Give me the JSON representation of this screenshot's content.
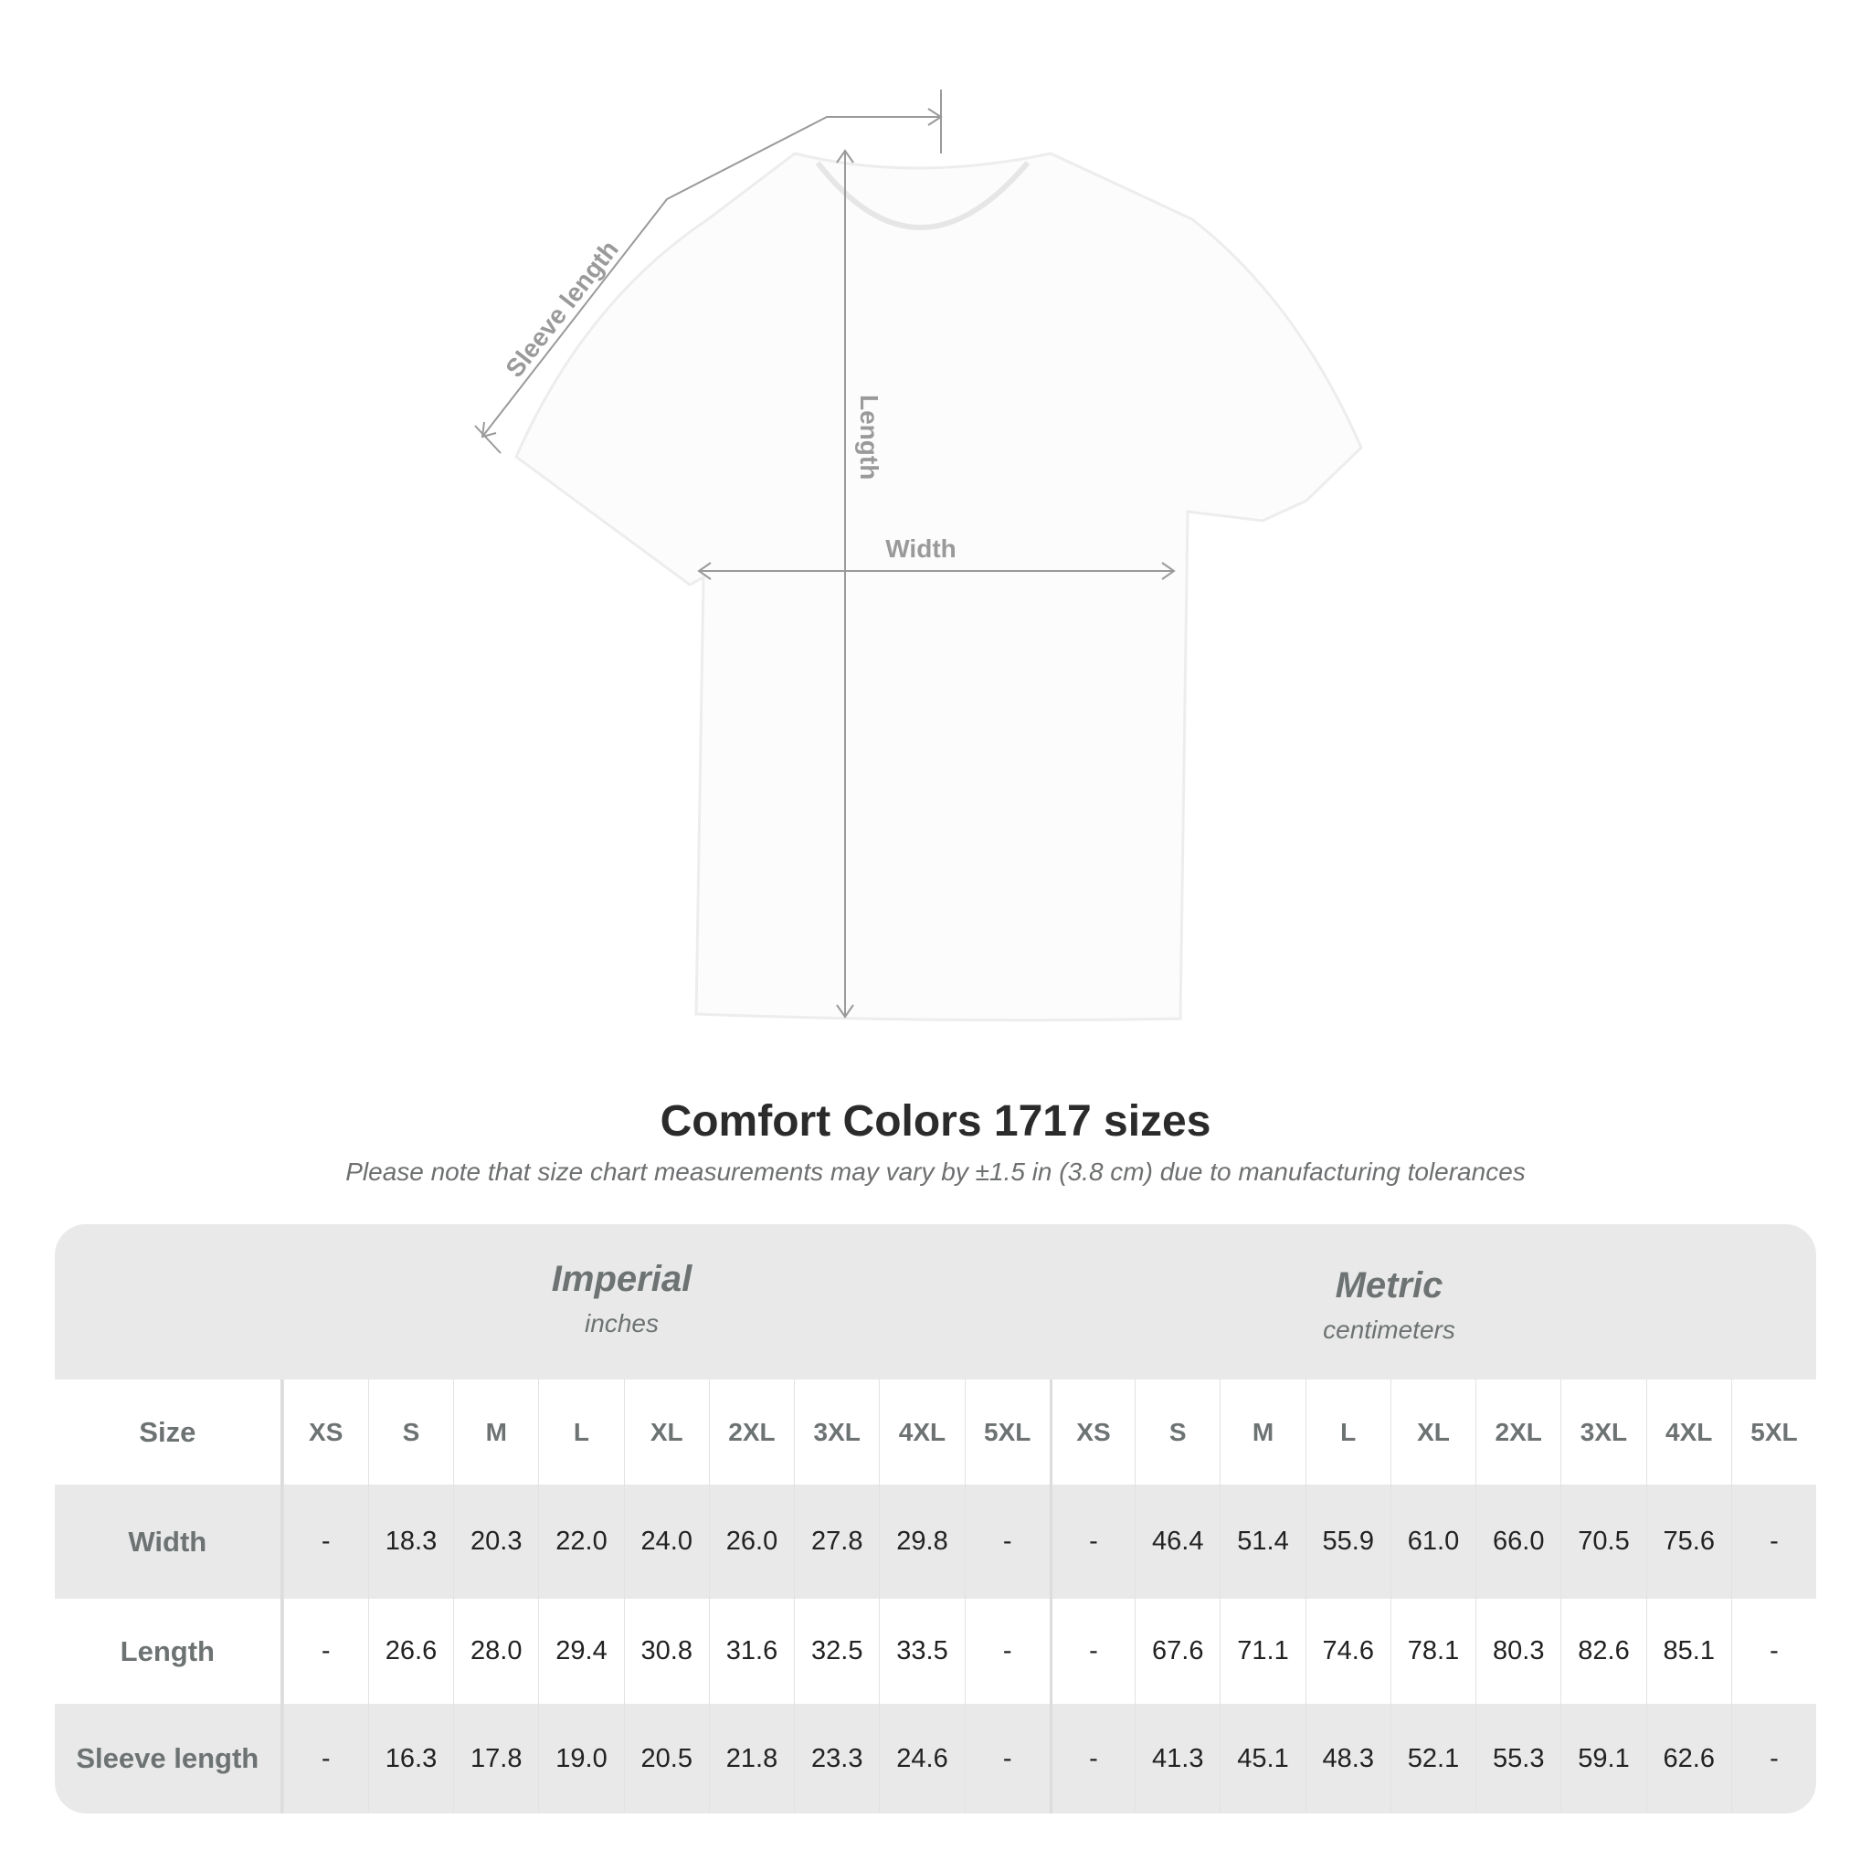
{
  "diagram": {
    "labels": {
      "sleeve": "Sleeve length",
      "length": "Length",
      "width": "Width"
    }
  },
  "title": "Comfort Colors 1717 sizes",
  "subtitle": "Please note that size chart measurements may vary by ±1.5 in (3.8 cm) due to manufacturing tolerances",
  "table": {
    "imperial": {
      "title": "Imperial",
      "unit": "inches"
    },
    "metric": {
      "title": "Metric",
      "unit": "centimeters"
    },
    "size_label": "Size",
    "sizes": [
      "XS",
      "S",
      "M",
      "L",
      "XL",
      "2XL",
      "3XL",
      "4XL",
      "5XL"
    ],
    "rows": [
      {
        "label": "Width",
        "imperial": [
          "-",
          "18.3",
          "20.3",
          "22.0",
          "24.0",
          "26.0",
          "27.8",
          "29.8",
          "-"
        ],
        "metric": [
          "-",
          "46.4",
          "51.4",
          "55.9",
          "61.0",
          "66.0",
          "70.5",
          "75.6",
          "-"
        ]
      },
      {
        "label": "Length",
        "imperial": [
          "-",
          "26.6",
          "28.0",
          "29.4",
          "30.8",
          "31.6",
          "32.5",
          "33.5",
          "-"
        ],
        "metric": [
          "-",
          "67.6",
          "71.1",
          "74.6",
          "78.1",
          "80.3",
          "82.6",
          "85.1",
          "-"
        ]
      },
      {
        "label": "Sleeve length",
        "imperial": [
          "-",
          "16.3",
          "17.8",
          "19.0",
          "20.5",
          "21.8",
          "23.3",
          "24.6",
          "-"
        ],
        "metric": [
          "-",
          "41.3",
          "45.1",
          "48.3",
          "52.1",
          "55.3",
          "59.1",
          "62.6",
          "-"
        ]
      }
    ]
  },
  "colors": {
    "band": "#e9e9e9",
    "label": "#6d7273",
    "measure_line": "#9a9a9a"
  }
}
